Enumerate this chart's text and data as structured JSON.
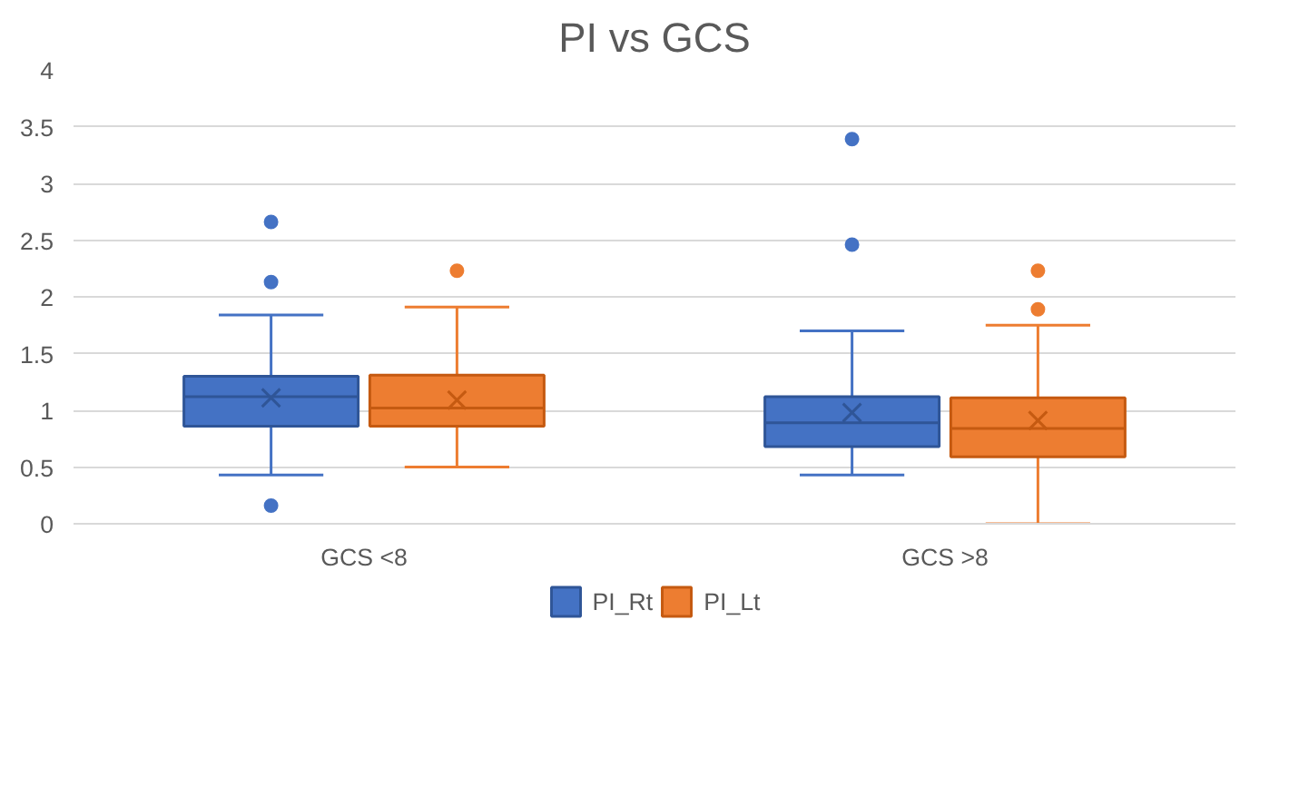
{
  "chart_data": {
    "type": "box",
    "title": "PI vs GCS",
    "categories": [
      "GCS <8",
      "GCS >8"
    ],
    "series": [
      {
        "name": "PI_Rt",
        "color": "#4472c4",
        "boxes": [
          {
            "low": 0.43,
            "q1": 0.86,
            "median": 1.12,
            "q3": 1.3,
            "high": 1.84,
            "mean": 1.11,
            "outliers": [
              2.66,
              2.13,
              0.16
            ]
          },
          {
            "low": 0.43,
            "q1": 0.68,
            "median": 0.89,
            "q3": 1.12,
            "high": 1.7,
            "mean": 0.98,
            "outliers": [
              3.39,
              2.46
            ]
          }
        ]
      },
      {
        "name": "PI_Lt",
        "color": "#ed7d31",
        "boxes": [
          {
            "low": 0.5,
            "q1": 0.86,
            "median": 1.02,
            "q3": 1.31,
            "high": 1.91,
            "mean": 1.09,
            "outliers": [
              2.23
            ]
          },
          {
            "low": 0,
            "q1": 0.59,
            "median": 0.84,
            "q3": 1.11,
            "high": 1.75,
            "mean": 0.91,
            "outliers": [
              2.23,
              1.89
            ]
          }
        ]
      }
    ],
    "ylim": [
      0,
      4
    ],
    "yticks": [
      0,
      0.5,
      1,
      1.5,
      2,
      2.5,
      3,
      3.5,
      4
    ],
    "grid": "y",
    "legend": "bottom"
  }
}
